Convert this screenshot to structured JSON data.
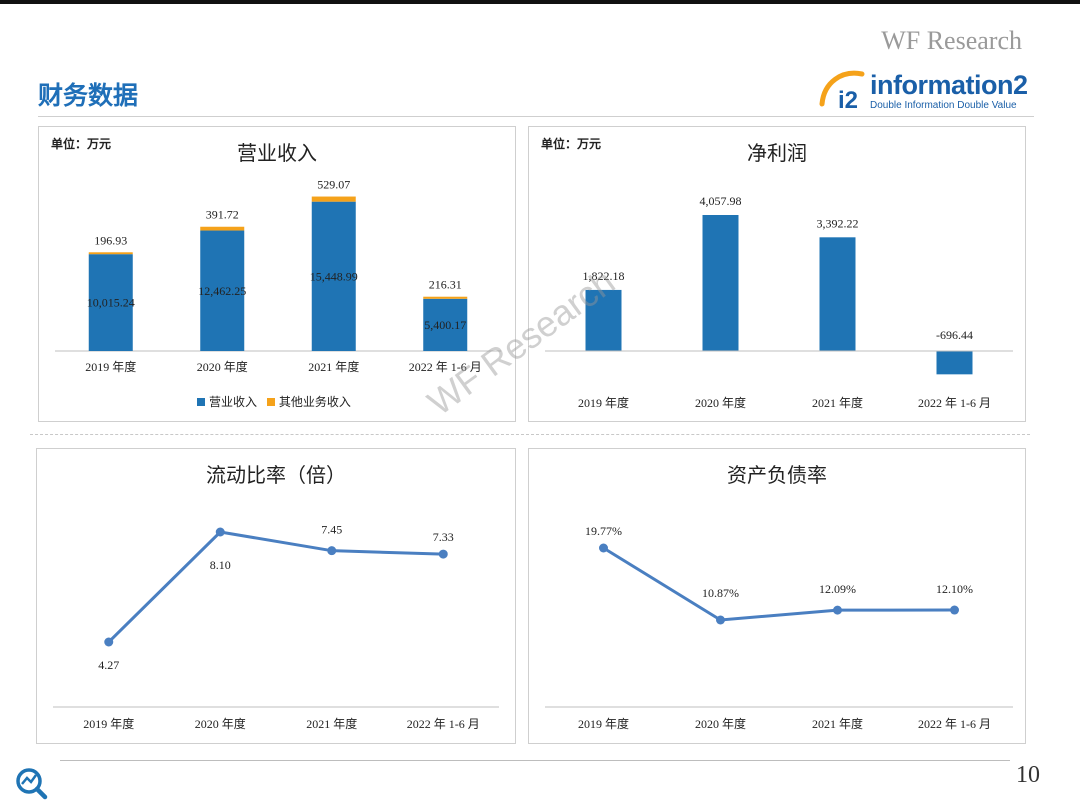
{
  "header": {
    "brand_watermark": "WF Research",
    "title": "财务数据",
    "logo_text": "information2",
    "logo_sub": "Double Information Double Value",
    "logo_mark": "i2"
  },
  "watermark": "WF Research",
  "page_number": "10",
  "colors": {
    "primary": "#1f74b4",
    "secondary": "#f5a21a",
    "line": "#4a7fc1"
  },
  "chart_data": [
    {
      "type": "bar",
      "unit": "单位：万元",
      "title": "营业收入",
      "categories": [
        "2019 年度",
        "2020 年度",
        "2021 年度",
        "2022 年 1-6 月"
      ],
      "series": [
        {
          "name": "营业收入",
          "values": [
            10015.24,
            12462.25,
            15448.99,
            5400.17
          ],
          "labels": [
            "10,015.24",
            "12,462.25",
            "15,448.99",
            "5,400.17"
          ]
        },
        {
          "name": "其他业务收入",
          "values": [
            196.93,
            391.72,
            529.07,
            216.31
          ],
          "labels": [
            "196.93",
            "391.72",
            "529.07",
            "216.31"
          ]
        }
      ],
      "stacked": true,
      "ylim": [
        0,
        18000
      ],
      "legend": "bottom",
      "grid": false
    },
    {
      "type": "bar",
      "unit": "单位：万元",
      "title": "净利润",
      "categories": [
        "2019 年度",
        "2020 年度",
        "2021 年度",
        "2022 年 1-6 月"
      ],
      "values": [
        1822.18,
        4057.98,
        3392.22,
        -696.44
      ],
      "labels": [
        "1,822.18",
        "4,057.98",
        "3,392.22",
        "-696.44"
      ],
      "ylim": [
        -800,
        4700
      ],
      "grid": false
    },
    {
      "type": "line",
      "title": "流动比率（倍）",
      "categories": [
        "2019 年度",
        "2020 年度",
        "2021 年度",
        "2022 年 1-6 月"
      ],
      "values": [
        4.27,
        8.1,
        7.45,
        7.33
      ],
      "labels": [
        "4.27",
        "8.10",
        "7.45",
        "7.33"
      ],
      "ylim": [
        0,
        10
      ],
      "grid": false
    },
    {
      "type": "line",
      "title": "资产负债率",
      "categories": [
        "2019 年度",
        "2020 年度",
        "2021 年度",
        "2022 年 1-6 月"
      ],
      "values": [
        19.77,
        10.87,
        12.09,
        12.1
      ],
      "labels": [
        "19.77%",
        "10.87%",
        "12.09%",
        "12.10%"
      ],
      "ylim": [
        0,
        25
      ],
      "grid": false
    }
  ]
}
